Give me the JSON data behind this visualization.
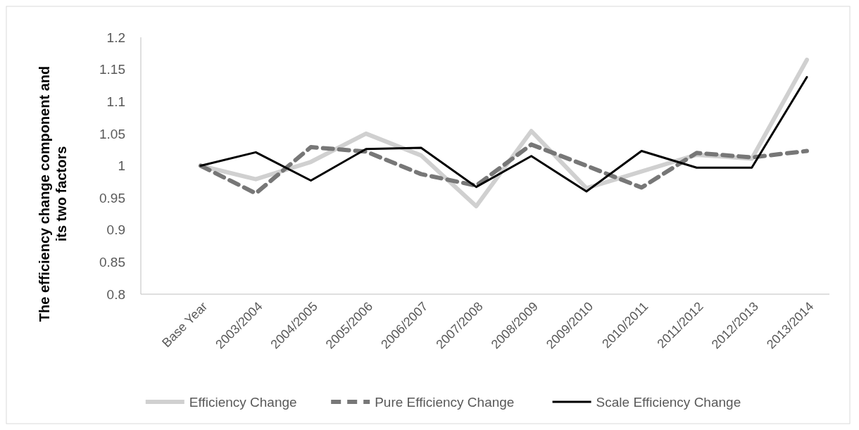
{
  "chart_data": {
    "type": "line",
    "ylabel": "The efficiency change component and its two factors",
    "categories": [
      "Base Year",
      "2003/2004",
      "2004/2005",
      "2005/2006",
      "2006/2007",
      "2007/2008",
      "2008/2009",
      "2009/2010",
      "2010/2011",
      "2011/2012",
      "2012/2013",
      "2013/2014"
    ],
    "series": [
      {
        "name": "Efficiency Change",
        "color": "#d0d0d0",
        "line_style": "solid",
        "values": [
          1.0,
          0.979,
          1.006,
          1.05,
          1.016,
          0.937,
          1.054,
          0.965,
          0.991,
          1.017,
          1.011,
          1.165
        ]
      },
      {
        "name": "Pure Efficiency Change",
        "color": "#777777",
        "line_style": "dashed",
        "values": [
          1.0,
          0.957,
          1.029,
          1.022,
          0.987,
          0.969,
          1.033,
          1.0,
          0.966,
          1.02,
          1.013,
          1.023
        ]
      },
      {
        "name": "Scale Efficiency Change",
        "color": "#000000",
        "line_style": "solid",
        "values": [
          1.0,
          1.021,
          0.977,
          1.026,
          1.028,
          0.967,
          1.015,
          0.96,
          1.023,
          0.997,
          0.997,
          1.138
        ]
      }
    ],
    "ylim": [
      0.8,
      1.2
    ],
    "yticks": [
      0.8,
      0.85,
      0.9,
      0.95,
      1,
      1.05,
      1.1,
      1.15,
      1.2
    ],
    "grid": false,
    "legend": "bottom"
  }
}
